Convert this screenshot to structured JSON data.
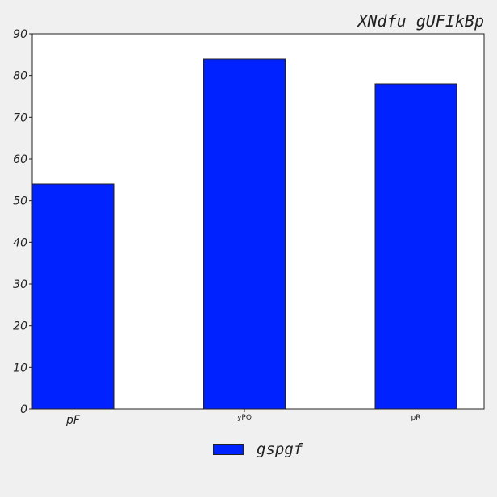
{
  "chart_data": {
    "type": "bar",
    "title": "XNdfu  gUFIkBp",
    "categories": [
      "pF",
      "yPO",
      "pR"
    ],
    "series": [
      {
        "name": "gspgf",
        "values": [
          54,
          84,
          78
        ],
        "color": "#0022ff"
      }
    ],
    "ylim": [
      0,
      90
    ],
    "yticks": [
      0,
      10,
      20,
      30,
      40,
      50,
      60,
      70,
      80,
      90
    ],
    "xlabel": "",
    "ylabel": "",
    "grid": false,
    "legend_position": "bottom-center"
  }
}
